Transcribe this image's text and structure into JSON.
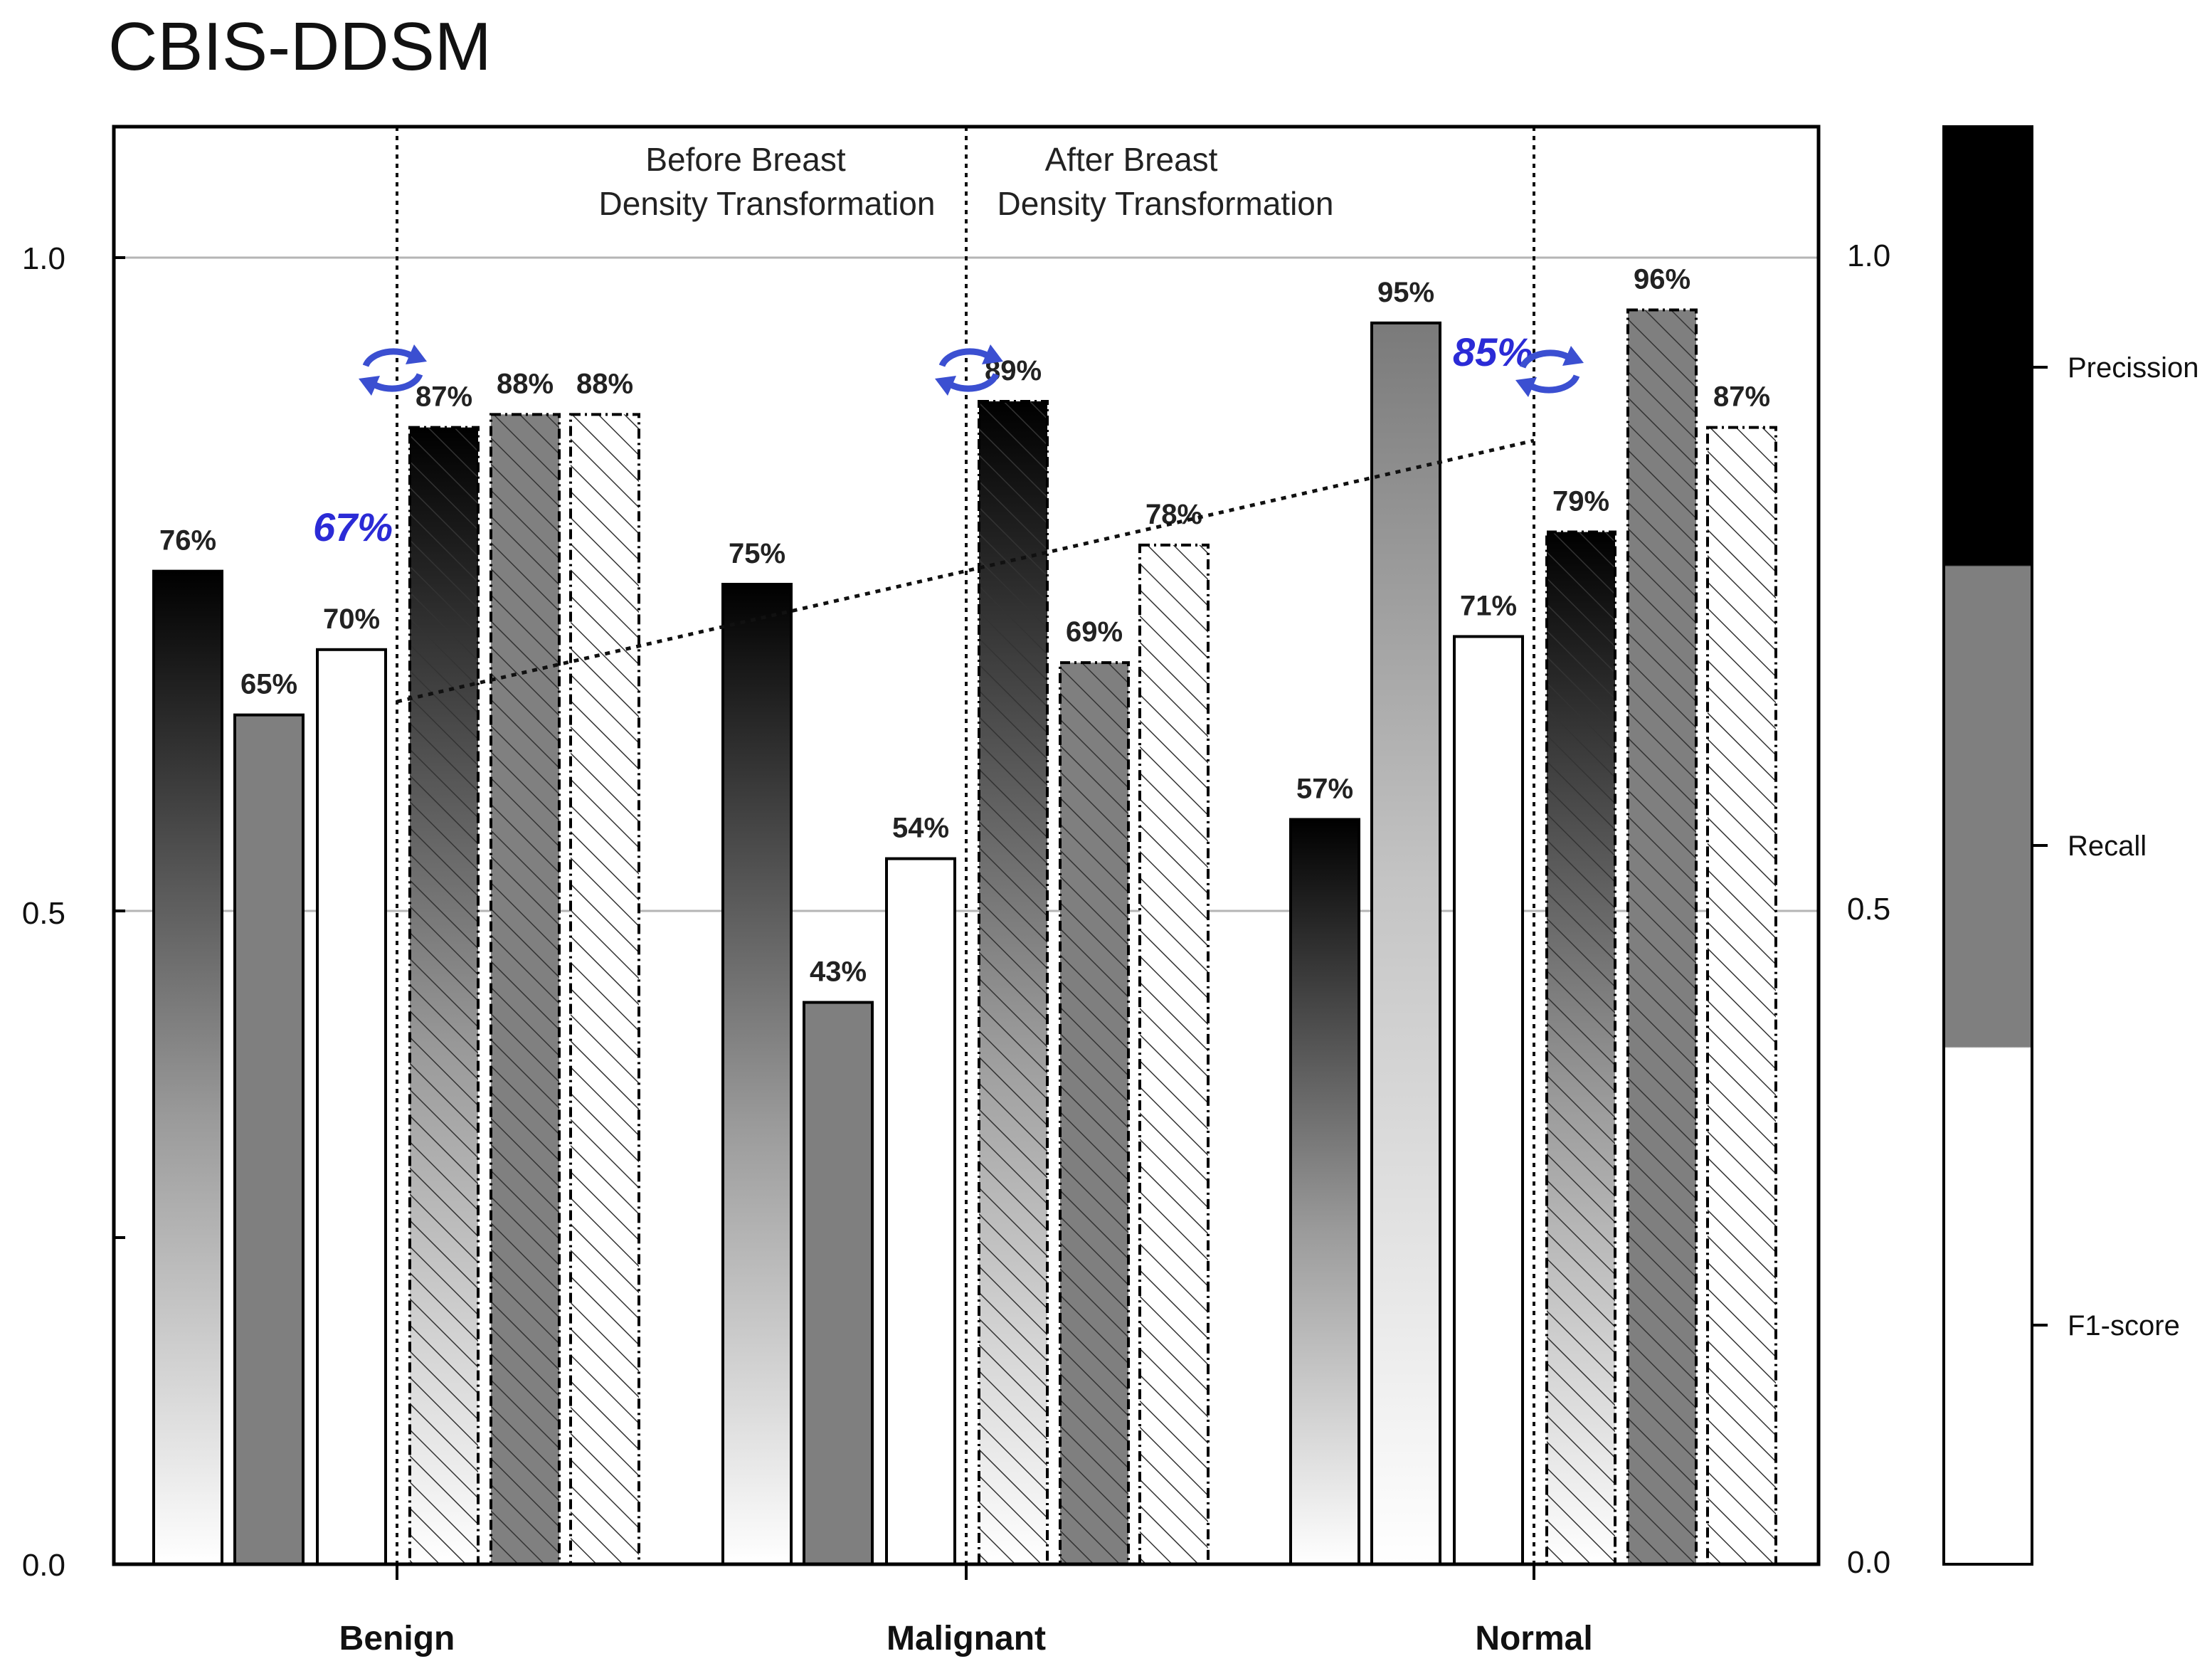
{
  "chart_data": {
    "type": "bar",
    "title": "CBIS-DDSM",
    "categories": [
      "Benign",
      "Malignant",
      "Normal"
    ],
    "ylim": [
      0,
      1.1
    ],
    "yticks": [
      "0.0",
      "0.5",
      "1.0"
    ],
    "right_yticks": [
      "0.0",
      "0.5",
      "1.0"
    ],
    "phase_labels": {
      "before": [
        "Before Breast",
        "Density Transformation"
      ],
      "after": [
        "After Breast",
        "Density Transformation"
      ]
    },
    "groups": [
      {
        "category": "Benign",
        "before": {
          "precision": 0.76,
          "recall": 0.65,
          "f1": 0.7
        },
        "before_labels": [
          "76%",
          "65%",
          "70%"
        ],
        "after": {
          "precision": 0.87,
          "recall": 0.88,
          "f1": 0.88
        },
        "after_labels": [
          "87%",
          "88%",
          "88%"
        ]
      },
      {
        "category": "Malignant",
        "before": {
          "precision": 0.75,
          "recall": 0.43,
          "f1": 0.54
        },
        "before_labels": [
          "75%",
          "43%",
          "54%"
        ],
        "after": {
          "precision": 0.89,
          "recall": 0.69,
          "f1": 0.78
        },
        "after_labels": [
          "89%",
          "69%",
          "78%"
        ]
      },
      {
        "category": "Normal",
        "before": {
          "precision": 0.57,
          "recall": 0.95,
          "f1": 0.71
        },
        "before_labels": [
          "57%",
          "95%",
          "71%"
        ],
        "after": {
          "precision": 0.79,
          "recall": 0.96,
          "f1": 0.87
        },
        "after_labels": [
          "79%",
          "96%",
          "87%"
        ]
      }
    ],
    "accuracy_annotations": [
      {
        "label": "67%",
        "value": 0.67
      },
      {
        "label": "85%",
        "value": 0.85
      }
    ],
    "trend_line": {
      "from": 0.67,
      "to": 0.86
    },
    "legend": [
      "Precission",
      "Recall",
      "F1-score"
    ],
    "colors": {
      "precision": "#000000",
      "recall": "#7f7f7f",
      "f1": "#ffffff",
      "accent": "#2b2bd6"
    }
  }
}
